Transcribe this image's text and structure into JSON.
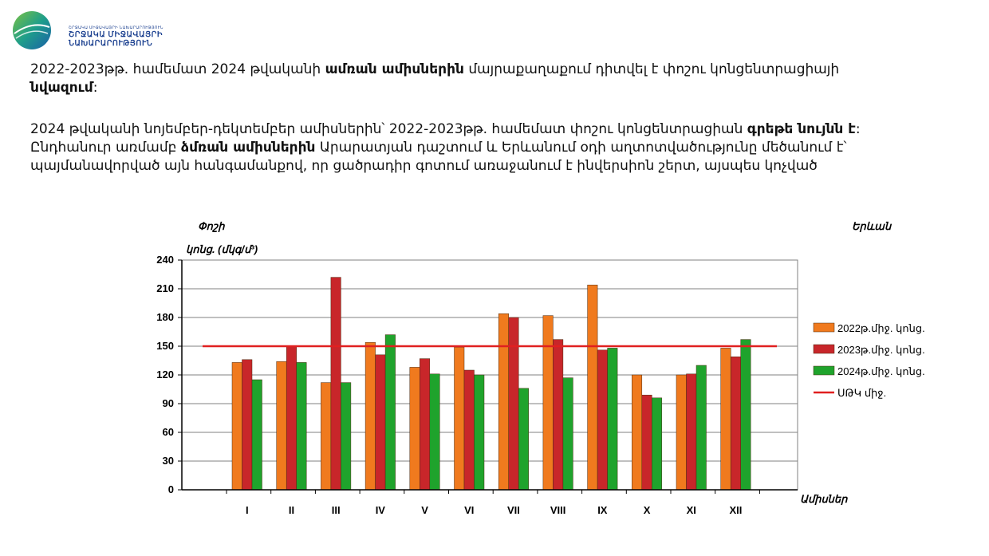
{
  "logo": {
    "line1": "ՇՐՋԱԿԱ ՄԻՋԱՎԱՅՐԻ ՆԱԽԱՐԱՐՈՒԹՅՈՒՆ",
    "line2": "ՇՐՋԱԿԱ ՄԻՋԱՎԱՅՐԻ",
    "line3": "ՆԱԽԱՐԱՐՈՒԹՅՈՒՆ"
  },
  "text": {
    "p1_a": "2022-2023թթ. համեմատ 2024 թվականի ",
    "p1_b": "ամռան ամիսներին",
    "p1_c": " մայրաքաղաքում դիտվել է փոշու կոնցենտրացիայի ",
    "p1_d": "նվազում",
    "p1_e": ":",
    "p2_a": "2024 թվականի նոյեմբեր-դեկտեմբեր ամիսներին՝ 2022-2023թթ. համեմատ փոշու կոնցենտրացիան ",
    "p2_b": "գրեթե նույնն է",
    "p2_c": ": Ընդհանուր առմամբ ",
    "p2_d": "ձմռան ամիսներին",
    "p2_e": " Արարատյան դաշտում և Երևանում օդի աղտոտվածությունը մեծանում է՝ պայմանավորված այն հանգամանքով, որ ցածրադիր գոտում առաջանում է ինվերսիոն շերտ, այսպես կոչված"
  },
  "chart_data": {
    "type": "bar",
    "ylabel_line1": "Փոշի",
    "ylabel_line2": "կոնց. (մկգ/մ³)",
    "xlabel": "Ամիսներ",
    "corner_label": "Երևան",
    "categories": [
      "I",
      "II",
      "III",
      "IV",
      "V",
      "VI",
      "VII",
      "VIII",
      "IX",
      "X",
      "XI",
      "XII"
    ],
    "ylim": [
      0,
      240
    ],
    "yticks": [
      0,
      30,
      60,
      90,
      120,
      150,
      180,
      210,
      240
    ],
    "grid": true,
    "legend_position": "right",
    "series": [
      {
        "name": "2022թ.միջ. կոնց.",
        "color": "#f07a1e",
        "values": [
          133,
          134,
          112,
          154,
          128,
          149,
          184,
          182,
          214,
          120,
          120,
          148
        ]
      },
      {
        "name": "2023թ.միջ. կոնց.",
        "color": "#c8262a",
        "values": [
          136,
          150,
          222,
          141,
          137,
          125,
          180,
          157,
          146,
          99,
          121,
          139
        ]
      },
      {
        "name": "2024թ.միջ. կոնց.",
        "color": "#1fa32c",
        "values": [
          115,
          133,
          112,
          162,
          121,
          120,
          106,
          117,
          148,
          96,
          130,
          157
        ]
      }
    ],
    "reference_line": {
      "name": "ՍԹԿ միջ.",
      "value": 150,
      "color": "#e02020"
    }
  }
}
